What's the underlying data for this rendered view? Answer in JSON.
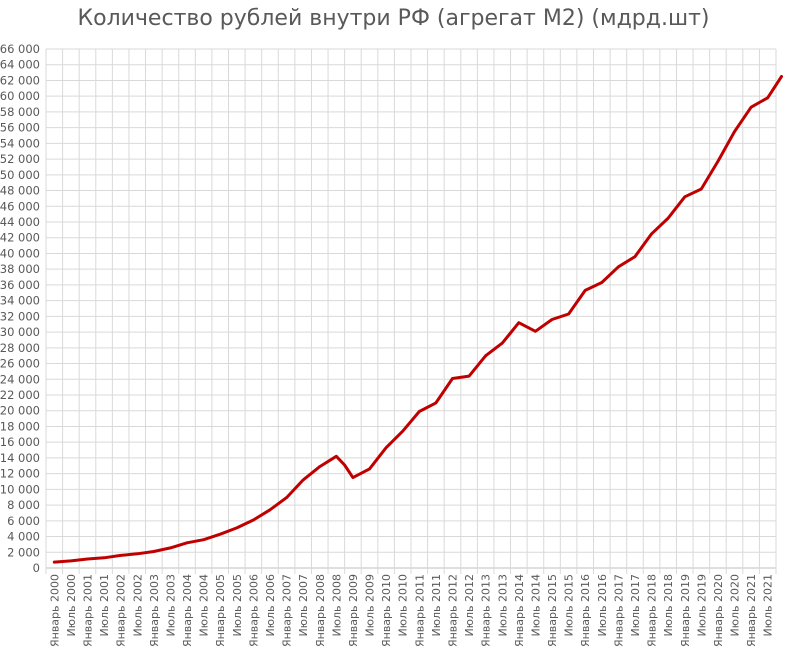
{
  "chart_data": {
    "type": "line",
    "title": "Количество рублей внутри РФ (агрегат М2) (мдрд.шт)",
    "xlabel": "",
    "ylabel": "",
    "ylim": [
      0,
      66000
    ],
    "yticks": [
      0,
      2000,
      4000,
      6000,
      8000,
      10000,
      12000,
      14000,
      16000,
      18000,
      20000,
      22000,
      24000,
      26000,
      28000,
      30000,
      32000,
      34000,
      36000,
      38000,
      40000,
      42000,
      44000,
      46000,
      48000,
      50000,
      52000,
      54000,
      56000,
      58000,
      60000,
      62000,
      64000,
      66000
    ],
    "ytick_labels": [
      "0",
      "2 000",
      "4 000",
      "6 000",
      "8 000",
      "10 000",
      "12 000",
      "14 000",
      "16 000",
      "18 000",
      "20 000",
      "22 000",
      "24 000",
      "26 000",
      "28 000",
      "30 000",
      "32 000",
      "34 000",
      "36 000",
      "38 000",
      "40 000",
      "42 000",
      "44 000",
      "46 000",
      "48 000",
      "50 000",
      "52 000",
      "54 000",
      "56 000",
      "58 000",
      "60 000",
      "62 000",
      "64 000",
      "66 000"
    ],
    "xtick_labels": [
      "Январь 2000",
      "Июль 2000",
      "Январь 2001",
      "Июль 2001",
      "Январь 2002",
      "Июль 2002",
      "Январь 2003",
      "Июль 2003",
      "Январь 2004",
      "Июль 2004",
      "Январь 2005",
      "Июль 2005",
      "Январь 2006",
      "Июль 2006",
      "Январь 2007",
      "Июль 2007",
      "Январь 2008",
      "Июль 2008",
      "Январь 2009",
      "Июль 2009",
      "Январь 2010",
      "Июль 2010",
      "Январь 2011",
      "Июль 2011",
      "Январь 2012",
      "Июль 2012",
      "Январь 2013",
      "Июль 2013",
      "Январь 2014",
      "Июль 2014",
      "Январь 2015",
      "Июль 2015",
      "Январь 2016",
      "Июль 2016",
      "Январь 2017",
      "Июль 2017",
      "Январь 2018",
      "Июль 2018",
      "Январь 2019",
      "Июль 2019",
      "Январь 2020",
      "Июль 2020",
      "Январь 2021",
      "Июль 2021"
    ],
    "grid": true,
    "line_color": "#C00000",
    "series": [
      {
        "name": "",
        "x": [
          "Январь 2000",
          "Июль 2000",
          "Январь 2001",
          "Июль 2001",
          "Январь 2002",
          "Июль 2002",
          "Январь 2003",
          "Июль 2003",
          "Январь 2004",
          "Июль 2004",
          "Январь 2005",
          "Июль 2005",
          "Январь 2006",
          "Июль 2006",
          "Январь 2007",
          "Июль 2007",
          "Январь 2008",
          "Июль 2008",
          "Октябрь 2008",
          "Январь 2009",
          "Июль 2009",
          "Январь 2010",
          "Июль 2010",
          "Январь 2011",
          "Июль 2011",
          "Январь 2012",
          "Июль 2012",
          "Январь 2013",
          "Июль 2013",
          "Январь 2014",
          "Июль 2014",
          "Январь 2015",
          "Июль 2015",
          "Январь 2016",
          "Июль 2016",
          "Январь 2017",
          "Июль 2017",
          "Январь 2018",
          "Июль 2018",
          "Январь 2019",
          "Июль 2019",
          "Январь 2020",
          "Июль 2020",
          "Январь 2021",
          "Июль 2021",
          "Декабрь 2021"
        ],
        "values": [
          750,
          900,
          1150,
          1300,
          1600,
          1800,
          2100,
          2550,
          3200,
          3600,
          4300,
          5100,
          6100,
          7400,
          8950,
          11200,
          12900,
          14200,
          13100,
          11500,
          12600,
          15300,
          17400,
          19900,
          21000,
          24100,
          24400,
          27000,
          28600,
          31200,
          30100,
          31600,
          32300,
          35300,
          36300,
          38300,
          39600,
          42500,
          44500,
          47200,
          48200,
          51700,
          55500,
          58600,
          59800,
          62500
        ]
      }
    ]
  }
}
